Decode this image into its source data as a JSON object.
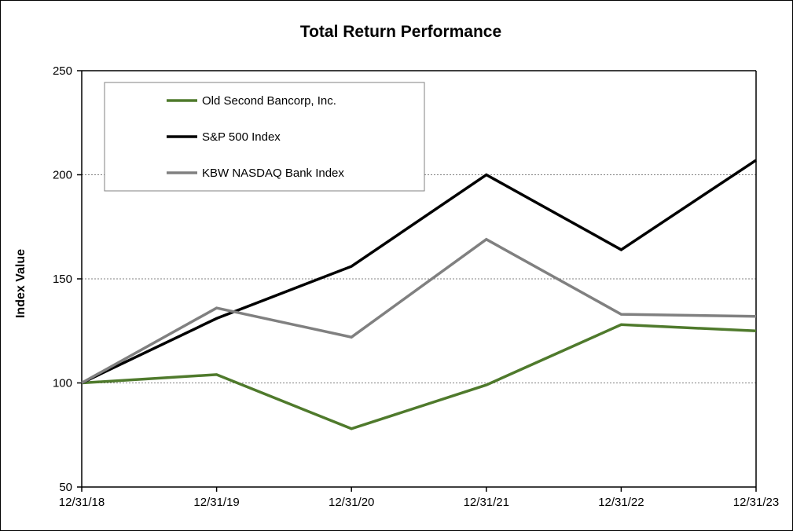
{
  "chart_data": {
    "type": "line",
    "title": "Total Return Performance",
    "xlabel": "",
    "ylabel": "Index Value",
    "categories": [
      "12/31/18",
      "12/31/19",
      "12/31/20",
      "12/31/21",
      "12/31/22",
      "12/31/23"
    ],
    "ylim": [
      50,
      250
    ],
    "yticks": [
      50,
      100,
      150,
      200,
      250
    ],
    "grid": true,
    "legend_position": "top-left",
    "series": [
      {
        "name": "Old Second Bancorp, Inc.",
        "color": "#4f7a2c",
        "values": [
          100,
          104,
          78,
          99,
          128,
          125
        ]
      },
      {
        "name": "S&P 500 Index",
        "color": "#000000",
        "values": [
          100,
          131,
          156,
          200,
          164,
          207
        ]
      },
      {
        "name": "KBW NASDAQ Bank Index",
        "color": "#808080",
        "values": [
          100,
          136,
          122,
          169,
          133,
          132
        ]
      }
    ]
  }
}
